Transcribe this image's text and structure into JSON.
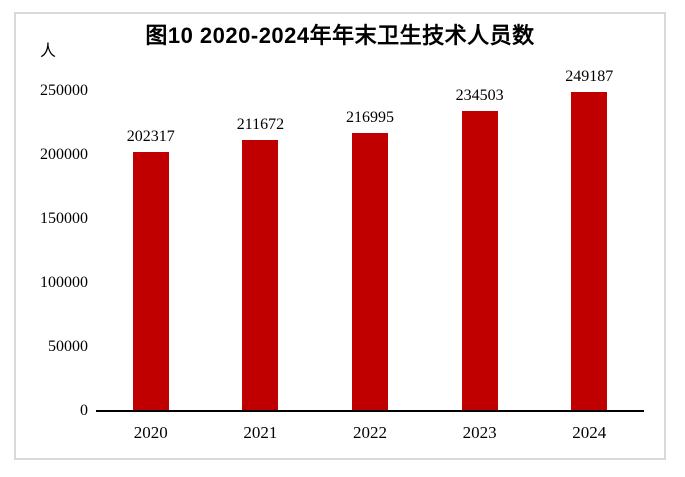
{
  "chart_data": {
    "type": "bar",
    "title": "图10 2020-2024年年末卫生技术人员数",
    "unit_label": "人",
    "categories": [
      "2020",
      "2021",
      "2022",
      "2023",
      "2024"
    ],
    "values": [
      202317,
      211672,
      216995,
      234503,
      249187
    ],
    "yticks": [
      0,
      50000,
      100000,
      150000,
      200000,
      250000
    ],
    "ylim": [
      0,
      250000
    ],
    "xlabel": "",
    "ylabel": "人",
    "grid": "off",
    "legend": "none",
    "data_labels": "above-bars",
    "bar_color": "#C00000",
    "axis_color": "#000000",
    "frame_border_color": "#D9D9D9",
    "text_color": "#000000",
    "background_color": "#FFFFFF"
  }
}
